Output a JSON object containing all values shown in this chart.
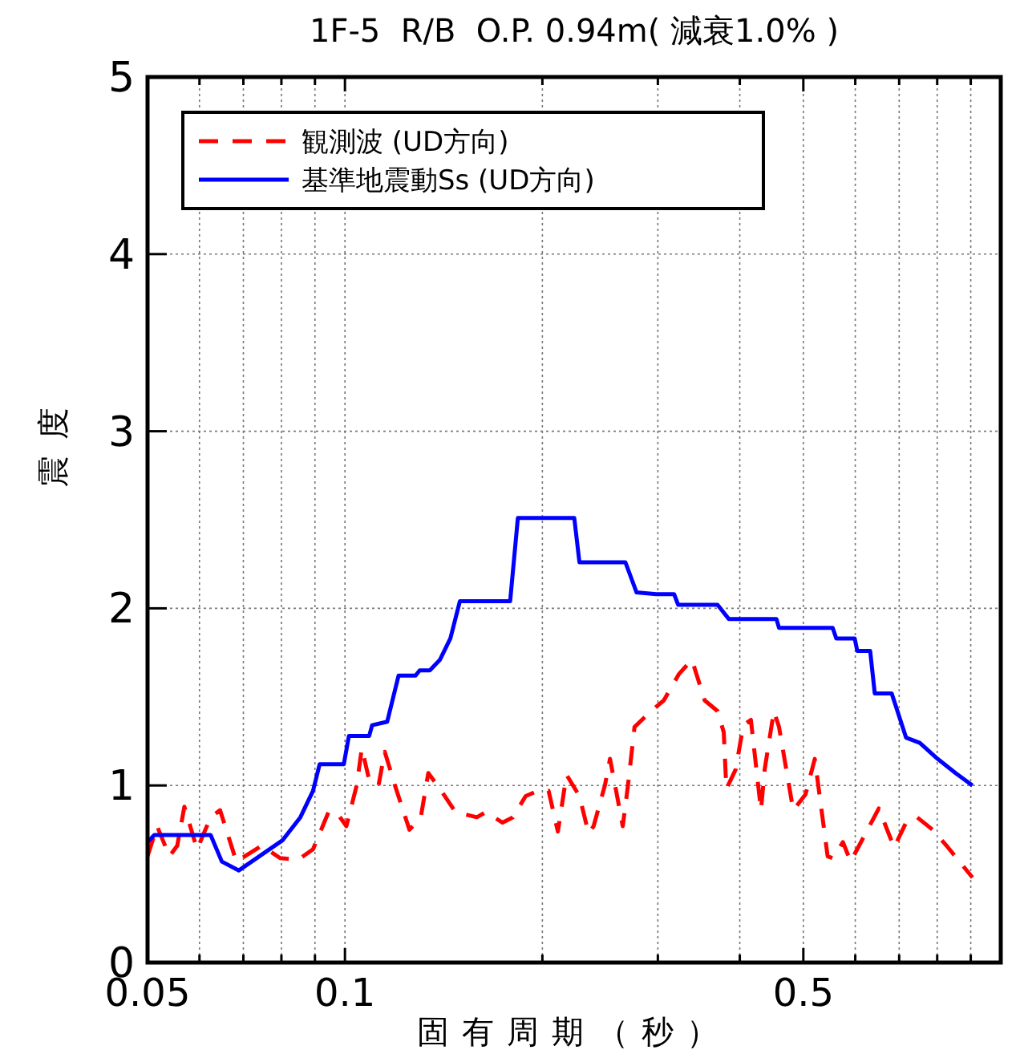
{
  "chart_data": {
    "type": "line",
    "title": "1F-5  R/B  O.P. 0.94m( 減衰1.0% )",
    "xlabel": "固有周期（秒）",
    "ylabel": "震度",
    "log": "x",
    "grid": true,
    "legend": "top left",
    "xlim": [
      0.05,
      1.0
    ],
    "ylim": [
      0,
      5
    ],
    "xticks": [
      0.05,
      {
        "value": 0.06,
        "label": null
      },
      {
        "value": 0.07,
        "label": null
      },
      {
        "value": 0.08,
        "label": null
      },
      {
        "value": 0.09,
        "label": null
      },
      0.1,
      {
        "value": 0.2,
        "label": null
      },
      {
        "value": 0.3,
        "label": null
      },
      {
        "value": 0.4,
        "label": null
      },
      0.5,
      {
        "value": 0.6,
        "label": null
      },
      {
        "value": 0.7,
        "label": null
      },
      {
        "value": 0.8,
        "label": null
      },
      {
        "value": 0.9,
        "label": null
      }
    ],
    "yticks": [
      0,
      1,
      2,
      3,
      4,
      5
    ],
    "series": [
      {
        "name": "観測波 (UD方向)",
        "color": "#ff0000",
        "line_style": "dashed",
        "x": [
          0.05,
          0.0517,
          0.054,
          0.0555,
          0.0569,
          0.0595,
          0.0624,
          0.0645,
          0.0683,
          0.0747,
          0.0796,
          0.0848,
          0.0894,
          0.0944,
          0.097,
          0.1005,
          0.1042,
          0.1061,
          0.1089,
          0.1125,
          0.115,
          0.1192,
          0.1254,
          0.1305,
          0.134,
          0.1402,
          0.1474,
          0.1589,
          0.1641,
          0.1739,
          0.1803,
          0.1886,
          0.1971,
          0.2044,
          0.2112,
          0.2177,
          0.2278,
          0.2352,
          0.2394,
          0.2491,
          0.2536,
          0.2591,
          0.2652,
          0.2701,
          0.2764,
          0.2929,
          0.3063,
          0.3232,
          0.3381,
          0.3537,
          0.37,
          0.3781,
          0.3816,
          0.3942,
          0.405,
          0.4159,
          0.4309,
          0.4365,
          0.4509,
          0.4591,
          0.4826,
          0.5039,
          0.5205,
          0.5445,
          0.5543,
          0.5746,
          0.5903,
          0.6517,
          0.6877,
          0.7192,
          0.7457,
          0.7871,
          0.8308,
          0.9055
        ],
        "values": [
          0.6,
          0.77,
          0.6,
          0.66,
          0.88,
          0.64,
          0.82,
          0.86,
          0.57,
          0.66,
          0.59,
          0.58,
          0.64,
          0.85,
          0.85,
          0.77,
          1.0,
          1.21,
          1.03,
          1.0,
          1.19,
          1.0,
          0.75,
          0.82,
          1.07,
          0.97,
          0.85,
          0.82,
          0.85,
          0.79,
          0.82,
          0.94,
          0.97,
          0.97,
          0.74,
          1.06,
          0.94,
          0.73,
          0.77,
          1.0,
          1.15,
          0.97,
          0.77,
          1.0,
          1.33,
          1.42,
          1.48,
          1.63,
          1.71,
          1.48,
          1.42,
          1.3,
          0.98,
          1.09,
          1.34,
          1.37,
          0.86,
          1.09,
          1.42,
          1.33,
          0.86,
          0.95,
          1.15,
          0.6,
          0.59,
          0.68,
          0.57,
          0.87,
          0.65,
          0.8,
          0.82,
          0.75,
          0.65,
          0.48
        ]
      },
      {
        "name": "基準地震動Ss (UD方向)",
        "color": "#0000ff",
        "line_style": "solid",
        "x": [
          0.05,
          0.0512,
          0.0624,
          0.0649,
          0.0689,
          0.0803,
          0.0855,
          0.0894,
          0.0915,
          0.0996,
          0.1014,
          0.1089,
          0.11,
          0.116,
          0.1207,
          0.1281,
          0.13,
          0.1347,
          0.1396,
          0.1448,
          0.1497,
          0.1786,
          0.1835,
          0.2237,
          0.2278,
          0.2677,
          0.2784,
          0.2982,
          0.3176,
          0.3221,
          0.37,
          0.3848,
          0.4549,
          0.4591,
          0.5543,
          0.5613,
          0.5988,
          0.6043,
          0.6322,
          0.6425,
          0.6818,
          0.7171,
          0.7526,
          0.8011,
          0.8532,
          0.9055
        ],
        "values": [
          0.68,
          0.72,
          0.72,
          0.57,
          0.52,
          0.69,
          0.82,
          0.97,
          1.12,
          1.12,
          1.28,
          1.28,
          1.34,
          1.36,
          1.62,
          1.62,
          1.65,
          1.65,
          1.71,
          1.83,
          2.04,
          2.04,
          2.51,
          2.51,
          2.26,
          2.26,
          2.09,
          2.08,
          2.08,
          2.02,
          2.02,
          1.94,
          1.94,
          1.89,
          1.89,
          1.83,
          1.83,
          1.76,
          1.76,
          1.52,
          1.52,
          1.27,
          1.24,
          1.15,
          1.07,
          1.0
        ]
      }
    ]
  }
}
